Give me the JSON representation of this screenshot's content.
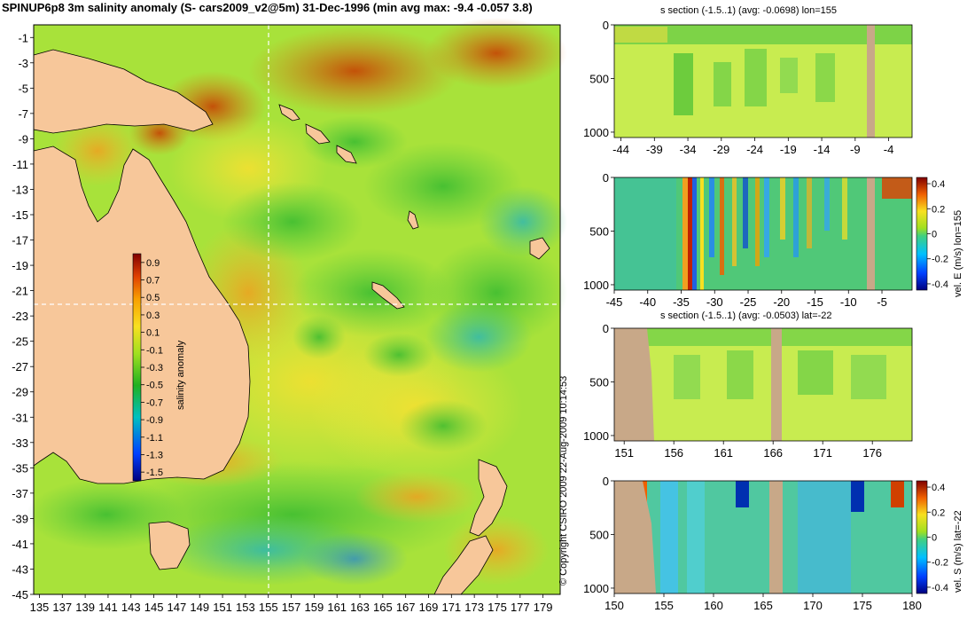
{
  "header": {
    "title": "SPINUP6p8 3m salinity anomaly (S- cars2009_v2@5m) 31-Dec-1996 (min avg max: -9.4 -0.057 3.8)"
  },
  "copyright": "© Copyright CSIRO 2009   22-Aug-2009 10:14:53",
  "colors": {
    "land": "#f7c79a",
    "section_land": "#c8a888",
    "ocean_base": "#a8e23a",
    "frame": "#000000"
  },
  "chart_data": [
    {
      "type": "heatmap",
      "name": "map",
      "title": "SPINUP6p8 3m salinity anomaly (S- cars2009_v2@5m) 31-Dec-1996 (min avg max: -9.4 -0.057 3.8)",
      "x_ticks": [
        "135",
        "137",
        "139",
        "141",
        "143",
        "145",
        "147",
        "149",
        "151",
        "153",
        "155",
        "157",
        "159",
        "161",
        "163",
        "165",
        "167",
        "169",
        "171",
        "173",
        "175",
        "177",
        "179"
      ],
      "y_ticks": [
        "-1",
        "-3",
        "-5",
        "-7",
        "-9",
        "-11",
        "-13",
        "-15",
        "-17",
        "-19",
        "-21",
        "-23",
        "-25",
        "-27",
        "-29",
        "-31",
        "-33",
        "-35",
        "-37",
        "-39",
        "-41",
        "-43",
        "-45"
      ],
      "xlim": [
        134.5,
        180.5
      ],
      "ylim": [
        -45,
        0
      ],
      "section_lon": 155,
      "section_lat": -22,
      "colorbar": {
        "label": "salinity anomaly",
        "ticks": [
          "0.9",
          "0.7",
          "0.5",
          "0.3",
          "0.1",
          "-0.1",
          "-0.3",
          "-0.5",
          "-0.7",
          "-0.9",
          "-1.1",
          "-1.3",
          "-1.5"
        ],
        "range": [
          -1.6,
          1.0
        ]
      }
    },
    {
      "type": "heatmap",
      "name": "s-section-lon",
      "title": "s section (-1.5..1) (avg: -0.0698) lon=155",
      "x_ticks": [
        "-44",
        "-39",
        "-34",
        "-29",
        "-24",
        "-19",
        "-14",
        "-9",
        "-4"
      ],
      "y_ticks": [
        "0",
        "500",
        "1000"
      ],
      "xlim": [
        -45,
        -0.5
      ],
      "ylim": [
        1050,
        0
      ]
    },
    {
      "type": "heatmap",
      "name": "vel-e-section-lon",
      "title": "",
      "x_ticks": [
        "-45",
        "-40",
        "-35",
        "-30",
        "-25",
        "-20",
        "-15",
        "-10",
        "-5"
      ],
      "y_ticks": [
        "0",
        "500",
        "1000"
      ],
      "xlim": [
        -45,
        -0.5
      ],
      "ylim": [
        1050,
        0
      ],
      "colorbar": {
        "label": "vel. E (m/s) lon=155",
        "ticks": [
          "0.4",
          "0.2",
          "0",
          "-0.2",
          "-0.4"
        ],
        "range": [
          -0.45,
          0.45
        ]
      }
    },
    {
      "type": "heatmap",
      "name": "s-section-lat",
      "title": "s section (-1.5..1) (avg: -0.0503) lat=-22",
      "x_ticks": [
        "151",
        "156",
        "161",
        "166",
        "171",
        "176"
      ],
      "y_ticks": [
        "0",
        "500",
        "1000"
      ],
      "xlim": [
        150,
        180
      ],
      "ylim": [
        1050,
        0
      ]
    },
    {
      "type": "heatmap",
      "name": "vel-s-section-lat",
      "title": "",
      "x_ticks": [
        "150",
        "155",
        "160",
        "165",
        "170",
        "175",
        "180"
      ],
      "y_ticks": [
        "0",
        "500",
        "1000"
      ],
      "xlim": [
        150,
        180
      ],
      "ylim": [
        1050,
        0
      ],
      "colorbar": {
        "label": "vel. S (m/s) lat=-22",
        "ticks": [
          "0.4",
          "0.2",
          "0",
          "-0.2",
          "-0.4"
        ],
        "range": [
          -0.45,
          0.45
        ]
      }
    }
  ]
}
